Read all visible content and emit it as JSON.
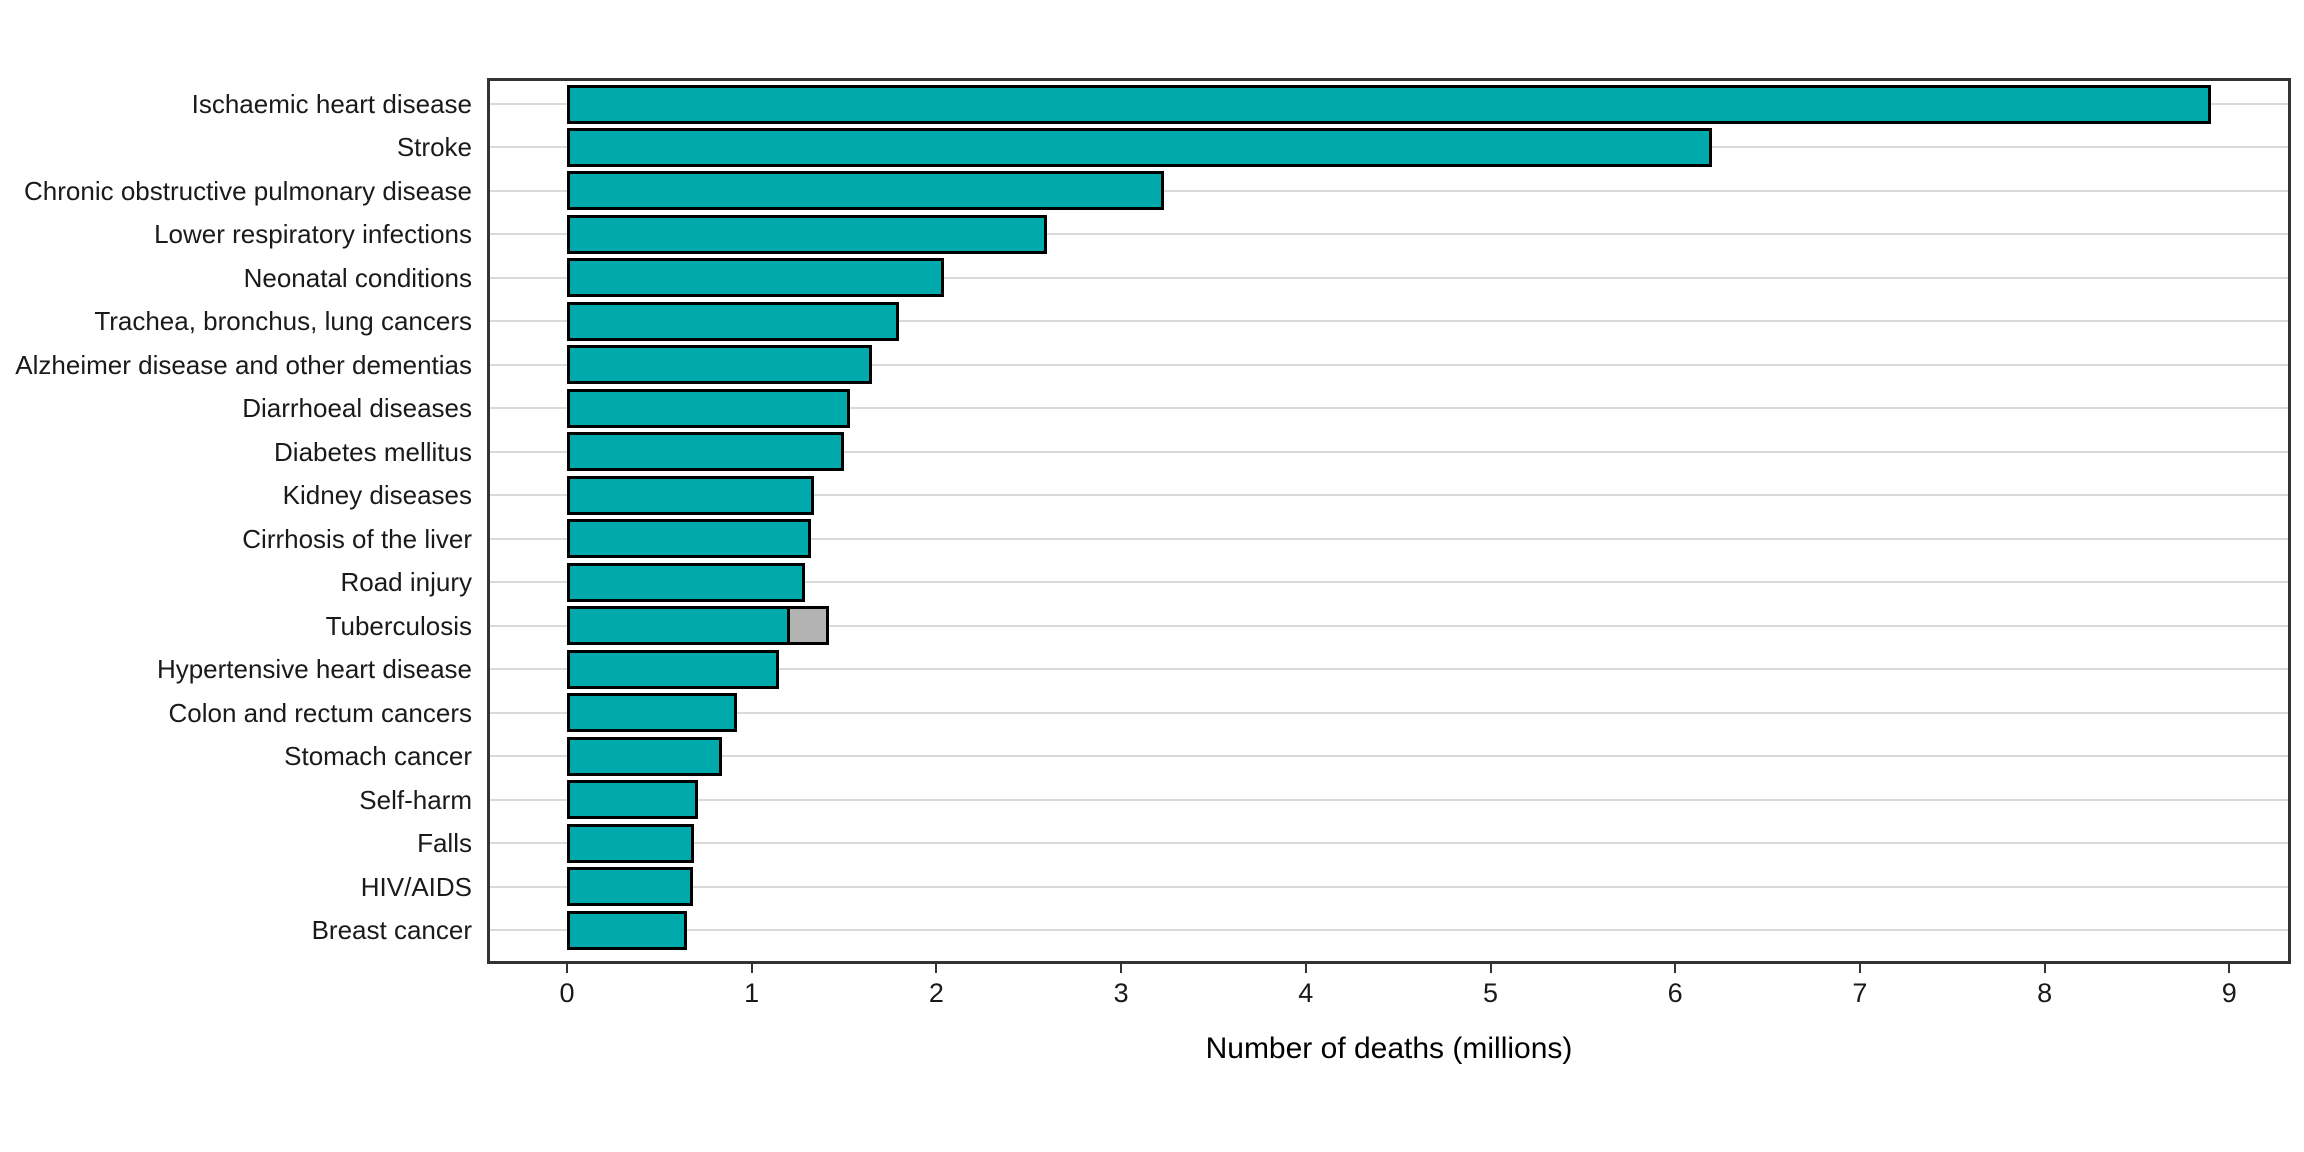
{
  "chart_data": {
    "type": "bar",
    "orientation": "horizontal",
    "xlabel": "Number of deaths (millions)",
    "ylabel": "",
    "xlim": [
      0,
      9
    ],
    "xticks": [
      0,
      1,
      2,
      3,
      4,
      5,
      6,
      7,
      8,
      9
    ],
    "grid": "horizontal-major-only",
    "legend": "none",
    "colors": {
      "bar_fill": "#00a9ac",
      "bar_stroke": "#000000",
      "extra_segment_fill": "#b3b3b3",
      "gridline": "#d9d9d9",
      "panel_border": "#333333",
      "text": "#1a1a1a"
    },
    "bars": [
      {
        "label": "Ischaemic heart disease",
        "value": 8.9
      },
      {
        "label": "Stroke",
        "value": 6.2
      },
      {
        "label": "Chronic obstructive pulmonary disease",
        "value": 3.23
      },
      {
        "label": "Lower respiratory infections",
        "value": 2.6
      },
      {
        "label": "Neonatal conditions",
        "value": 2.04
      },
      {
        "label": "Trachea, bronchus, lung cancers",
        "value": 1.8
      },
      {
        "label": "Alzheimer disease and other dementias",
        "value": 1.65
      },
      {
        "label": "Diarrhoeal diseases",
        "value": 1.53
      },
      {
        "label": "Diabetes mellitus",
        "value": 1.5
      },
      {
        "label": "Kidney diseases",
        "value": 1.34
      },
      {
        "label": "Cirrhosis of the liver",
        "value": 1.32
      },
      {
        "label": "Road injury",
        "value": 1.29
      },
      {
        "label": "Tuberculosis",
        "value": 1.21,
        "extra_value": 0.21
      },
      {
        "label": "Hypertensive heart disease",
        "value": 1.15
      },
      {
        "label": "Colon and rectum cancers",
        "value": 0.92
      },
      {
        "label": "Stomach cancer",
        "value": 0.84
      },
      {
        "label": "Self-harm",
        "value": 0.71
      },
      {
        "label": "Falls",
        "value": 0.69
      },
      {
        "label": "HIV/AIDS",
        "value": 0.68
      },
      {
        "label": "Breast cancer",
        "value": 0.65
      }
    ]
  }
}
